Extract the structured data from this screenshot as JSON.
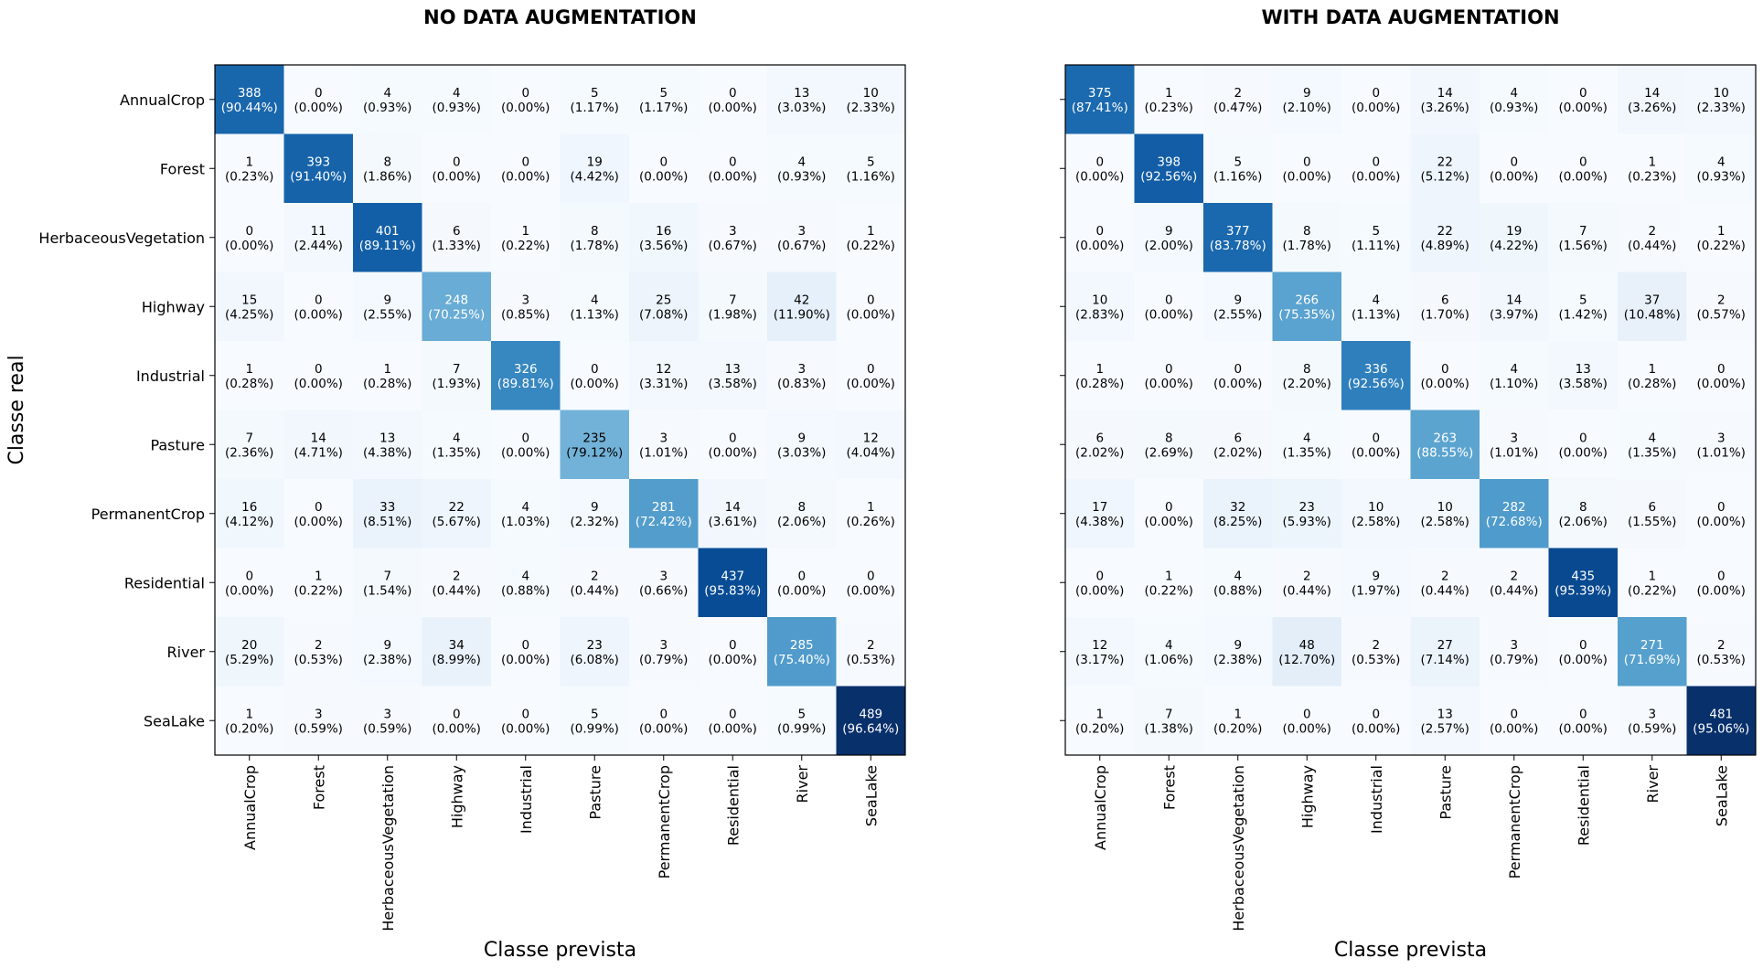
{
  "chart_data": [
    {
      "type": "heatmap",
      "title": "NO DATA AUGMENTATION",
      "xlabel": "Classe prevista",
      "ylabel": "Classe real",
      "categories": [
        "AnnualCrop",
        "Forest",
        "HerbaceousVegetation",
        "Highway",
        "Industrial",
        "Pasture",
        "PermanentCrop",
        "Residential",
        "River",
        "SeaLake"
      ],
      "colormap": "Blues",
      "values": [
        [
          388,
          0,
          4,
          4,
          0,
          5,
          5,
          0,
          13,
          10
        ],
        [
          1,
          393,
          8,
          0,
          0,
          19,
          0,
          0,
          4,
          5
        ],
        [
          0,
          11,
          401,
          6,
          1,
          8,
          16,
          3,
          3,
          1
        ],
        [
          15,
          0,
          9,
          248,
          3,
          4,
          25,
          7,
          42,
          0
        ],
        [
          1,
          0,
          1,
          7,
          326,
          0,
          12,
          13,
          3,
          0
        ],
        [
          7,
          14,
          13,
          4,
          0,
          235,
          3,
          0,
          9,
          12
        ],
        [
          16,
          0,
          33,
          22,
          4,
          9,
          281,
          14,
          8,
          1
        ],
        [
          0,
          1,
          7,
          2,
          4,
          2,
          3,
          437,
          0,
          0
        ],
        [
          20,
          2,
          9,
          34,
          0,
          23,
          3,
          0,
          285,
          2
        ],
        [
          1,
          3,
          3,
          0,
          0,
          5,
          0,
          0,
          5,
          489
        ]
      ],
      "percentages": [
        [
          "90.44%",
          "0.00%",
          "0.93%",
          "0.93%",
          "0.00%",
          "1.17%",
          "1.17%",
          "0.00%",
          "3.03%",
          "2.33%"
        ],
        [
          "0.23%",
          "91.40%",
          "1.86%",
          "0.00%",
          "0.00%",
          "4.42%",
          "0.00%",
          "0.00%",
          "0.93%",
          "1.16%"
        ],
        [
          "0.00%",
          "2.44%",
          "89.11%",
          "1.33%",
          "0.22%",
          "1.78%",
          "3.56%",
          "0.67%",
          "0.67%",
          "0.22%"
        ],
        [
          "4.25%",
          "0.00%",
          "2.55%",
          "70.25%",
          "0.85%",
          "1.13%",
          "7.08%",
          "1.98%",
          "11.90%",
          "0.00%"
        ],
        [
          "0.28%",
          "0.00%",
          "0.28%",
          "1.93%",
          "89.81%",
          "0.00%",
          "3.31%",
          "3.58%",
          "0.83%",
          "0.00%"
        ],
        [
          "2.36%",
          "4.71%",
          "4.38%",
          "1.35%",
          "0.00%",
          "79.12%",
          "1.01%",
          "0.00%",
          "3.03%",
          "4.04%"
        ],
        [
          "4.12%",
          "0.00%",
          "8.51%",
          "5.67%",
          "1.03%",
          "2.32%",
          "72.42%",
          "3.61%",
          "2.06%",
          "0.26%"
        ],
        [
          "0.00%",
          "0.22%",
          "1.54%",
          "0.44%",
          "0.88%",
          "0.44%",
          "0.66%",
          "95.83%",
          "0.00%",
          "0.00%"
        ],
        [
          "5.29%",
          "0.53%",
          "2.38%",
          "8.99%",
          "0.00%",
          "6.08%",
          "0.79%",
          "0.00%",
          "75.40%",
          "0.53%"
        ],
        [
          "0.20%",
          "0.59%",
          "0.59%",
          "0.00%",
          "0.00%",
          "0.99%",
          "0.00%",
          "0.00%",
          "0.99%",
          "96.64%"
        ]
      ]
    },
    {
      "type": "heatmap",
      "title": "WITH DATA AUGMENTATION",
      "xlabel": "Classe prevista",
      "ylabel": "",
      "categories": [
        "AnnualCrop",
        "Forest",
        "HerbaceousVegetation",
        "Highway",
        "Industrial",
        "Pasture",
        "PermanentCrop",
        "Residential",
        "River",
        "SeaLake"
      ],
      "colormap": "Blues",
      "values": [
        [
          375,
          1,
          2,
          9,
          0,
          14,
          4,
          0,
          14,
          10
        ],
        [
          0,
          398,
          5,
          0,
          0,
          22,
          0,
          0,
          1,
          4
        ],
        [
          0,
          9,
          377,
          8,
          5,
          22,
          19,
          7,
          2,
          1
        ],
        [
          10,
          0,
          9,
          266,
          4,
          6,
          14,
          5,
          37,
          2
        ],
        [
          1,
          0,
          0,
          8,
          336,
          0,
          4,
          13,
          1,
          0
        ],
        [
          6,
          8,
          6,
          4,
          0,
          263,
          3,
          0,
          4,
          3
        ],
        [
          17,
          0,
          32,
          23,
          10,
          10,
          282,
          8,
          6,
          0
        ],
        [
          0,
          1,
          4,
          2,
          9,
          2,
          2,
          435,
          1,
          0
        ],
        [
          12,
          4,
          9,
          48,
          2,
          27,
          3,
          0,
          271,
          2
        ],
        [
          1,
          7,
          1,
          0,
          0,
          13,
          0,
          0,
          3,
          481
        ]
      ],
      "percentages": [
        [
          "87.41%",
          "0.23%",
          "0.47%",
          "2.10%",
          "0.00%",
          "3.26%",
          "0.93%",
          "0.00%",
          "3.26%",
          "2.33%"
        ],
        [
          "0.00%",
          "92.56%",
          "1.16%",
          "0.00%",
          "0.00%",
          "5.12%",
          "0.00%",
          "0.00%",
          "0.23%",
          "0.93%"
        ],
        [
          "0.00%",
          "2.00%",
          "83.78%",
          "1.78%",
          "1.11%",
          "4.89%",
          "4.22%",
          "1.56%",
          "0.44%",
          "0.22%"
        ],
        [
          "2.83%",
          "0.00%",
          "2.55%",
          "75.35%",
          "1.13%",
          "1.70%",
          "3.97%",
          "1.42%",
          "10.48%",
          "0.57%"
        ],
        [
          "0.28%",
          "0.00%",
          "0.00%",
          "2.20%",
          "92.56%",
          "0.00%",
          "1.10%",
          "3.58%",
          "0.28%",
          "0.00%"
        ],
        [
          "2.02%",
          "2.69%",
          "2.02%",
          "1.35%",
          "0.00%",
          "88.55%",
          "1.01%",
          "0.00%",
          "1.35%",
          "1.01%"
        ],
        [
          "4.38%",
          "0.00%",
          "8.25%",
          "5.93%",
          "2.58%",
          "2.58%",
          "72.68%",
          "2.06%",
          "1.55%",
          "0.00%"
        ],
        [
          "0.00%",
          "0.22%",
          "0.88%",
          "0.44%",
          "1.97%",
          "0.44%",
          "0.44%",
          "95.39%",
          "0.22%",
          "0.00%"
        ],
        [
          "3.17%",
          "1.06%",
          "2.38%",
          "12.70%",
          "0.53%",
          "7.14%",
          "0.79%",
          "0.00%",
          "71.69%",
          "0.53%"
        ],
        [
          "0.20%",
          "1.38%",
          "0.20%",
          "0.00%",
          "0.00%",
          "2.57%",
          "0.00%",
          "0.00%",
          "0.59%",
          "95.06%"
        ]
      ]
    }
  ]
}
